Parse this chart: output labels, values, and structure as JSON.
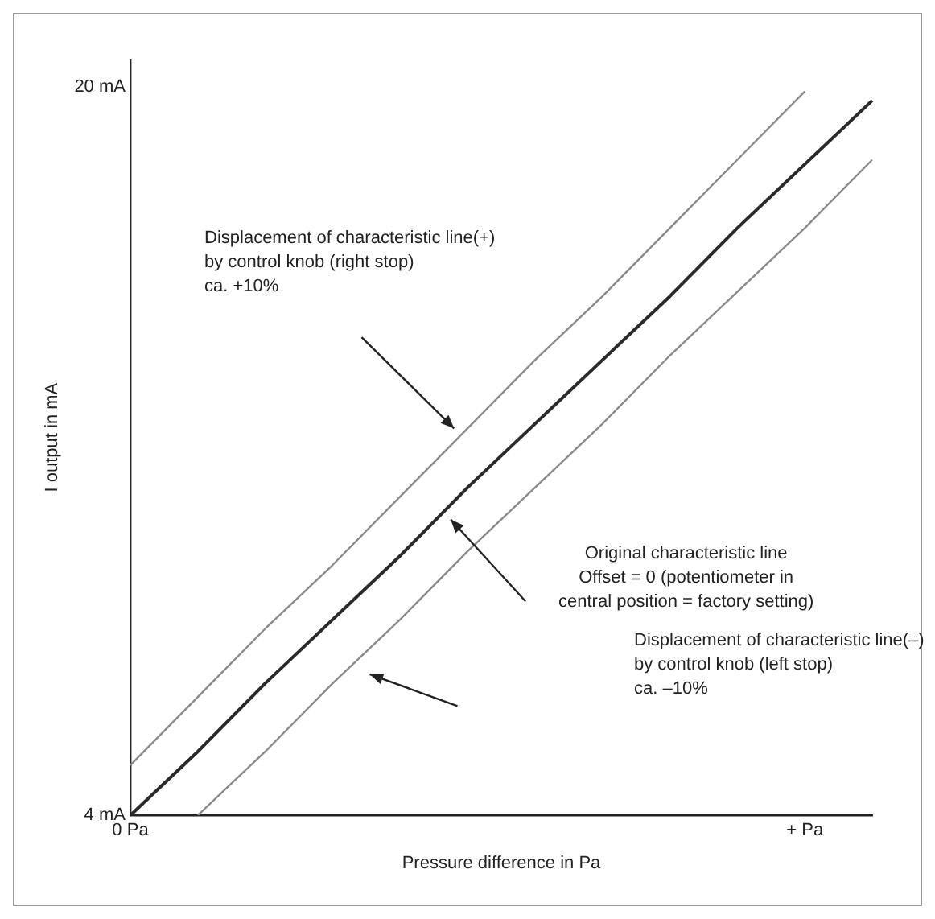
{
  "chart_data": {
    "type": "line",
    "xlabel": "Pressure difference in Pa",
    "ylabel": "I output in mA",
    "categories": [
      "0 Pa",
      null,
      null,
      null,
      null,
      null,
      null,
      null,
      null,
      null,
      "+ Pa",
      null
    ],
    "ylim": [
      4,
      20.6
    ],
    "yticks": [
      {
        "value": 4,
        "label": "4 mA"
      },
      {
        "value": 20,
        "label": "20 mA"
      }
    ],
    "series": [
      {
        "color": "#8a8a8a",
        "values": [
          5.1,
          6.6,
          8.1,
          9.5,
          11.0,
          12.5,
          14.0,
          15.4,
          16.9,
          18.4,
          19.9,
          null
        ]
      },
      {
        "color": "#2a2a2a",
        "values": [
          4,
          5.4,
          6.9,
          8.3,
          9.7,
          11.2,
          12.6,
          14.0,
          15.4,
          16.9,
          18.3,
          19.7
        ]
      },
      {
        "color": "#8a8a8a",
        "values": [
          null,
          4,
          5.4,
          6.9,
          8.3,
          9.8,
          11.2,
          12.6,
          14.1,
          15.5,
          16.9,
          18.4
        ]
      }
    ],
    "annotations": [
      "Displacement of characteristic line(+)\nby control knob (right stop)\nca. +10%",
      "Original characteristic line\nOffset = 0 (potentiometer in\ncentral position = factory setting)",
      "Displacement of characteristic line(–)\nby control knob (left stop)\nca. –10%"
    ],
    "grid": false,
    "legend": false,
    "marker": "none",
    "line_style": "solid"
  }
}
